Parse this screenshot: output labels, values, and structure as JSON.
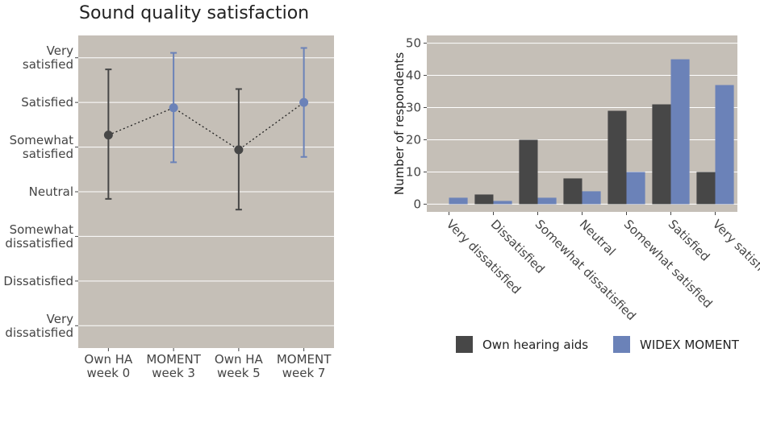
{
  "chart_data": [
    {
      "type": "scatter",
      "title": "Sound quality satisfaction",
      "xlabel": "",
      "ylabel": "",
      "grid": true,
      "y_levels": [
        "Very dissatisfied",
        "Dissatisfied",
        "Somewhat dissatisfied",
        "Neutral",
        "Somewhat satisfied",
        "Satisfied",
        "Very satisfied"
      ],
      "y_tick_labels": [
        [
          "Very",
          "dissatisfied"
        ],
        [
          "Dissatisfied"
        ],
        [
          "Somewhat",
          "dissatisfied"
        ],
        [
          "Neutral"
        ],
        [
          "Somewhat",
          "satisfied"
        ],
        [
          "Satisfied"
        ],
        [
          "Very",
          "satisfied"
        ]
      ],
      "ylim": [
        0.5,
        7.5
      ],
      "categories": [
        [
          "Own HA",
          "week 0"
        ],
        [
          "MOMENT",
          "week 3"
        ],
        [
          "Own HA",
          "week 5"
        ],
        [
          "MOMENT",
          "week 7"
        ]
      ],
      "points": [
        {
          "category": 0,
          "mean": 5.27,
          "lower": 3.84,
          "upper": 6.74,
          "series": "Own hearing aids"
        },
        {
          "category": 1,
          "mean": 5.88,
          "lower": 4.66,
          "upper": 7.11,
          "series": "WIDEX MOMENT"
        },
        {
          "category": 2,
          "mean": 4.94,
          "lower": 3.6,
          "upper": 6.3,
          "series": "Own hearing aids"
        },
        {
          "category": 3,
          "mean": 6.0,
          "lower": 4.78,
          "upper": 7.22,
          "series": "WIDEX MOMENT"
        }
      ]
    },
    {
      "type": "bar",
      "title": "",
      "xlabel": "",
      "ylabel": "Number of respondents",
      "ylim": [
        -2.4,
        52.4
      ],
      "yticks": [
        0,
        10,
        20,
        30,
        40,
        50
      ],
      "grid": true,
      "categories": [
        "Very dissatisfied",
        "Dissatisfied",
        "Somewhat dissatisfied",
        "Neutral",
        "Somewhat satisfied",
        "Satisfied",
        "Very satisfied"
      ],
      "series": [
        {
          "name": "Own hearing aids",
          "values": [
            0,
            3,
            20,
            8,
            29,
            31,
            10
          ]
        },
        {
          "name": "WIDEX MOMENT",
          "values": [
            2,
            1,
            2,
            4,
            10,
            45,
            37
          ]
        }
      ],
      "legend_position": "bottom"
    }
  ],
  "colors": {
    "own": "#474747",
    "moment": "#6b82b8",
    "panel": "#c5bfb7",
    "grid": "#ffffff",
    "text": "#444444"
  }
}
